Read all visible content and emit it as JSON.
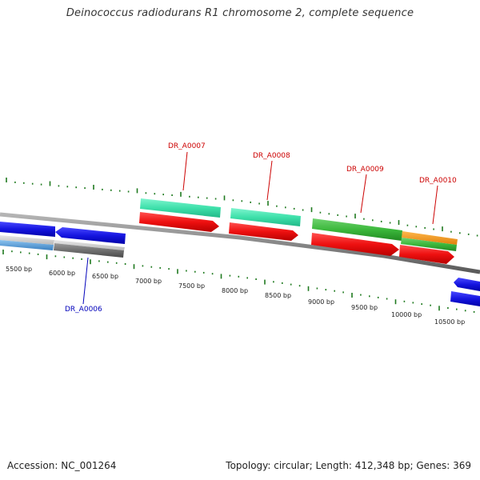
{
  "title": "Deinococcus radiodurans R1 chromosome 2, complete sequence",
  "footer": {
    "accession": "Accession: NC_001264",
    "topology": "Topology: circular; Length: 412,348 bp; Genes: 369"
  },
  "scale_labels": [
    "5500 bp",
    "6000 bp",
    "6500 bp",
    "7000 bp",
    "7500 bp",
    "8000 bp",
    "8500 bp",
    "9000 bp",
    "9500 bp",
    "10000 bp",
    "10500 bp"
  ],
  "gene_labels": {
    "DR_A0006": "DR_A0006",
    "DR_A0007": "DR_A0007",
    "DR_A0008": "DR_A0008",
    "DR_A0009": "DR_A0009",
    "DR_A0010": "DR_A0010"
  },
  "colors": {
    "tick": "#1f7a1f",
    "backbone": "#8a8a8a",
    "cds": "#e8141e",
    "gene_teal": "#44e6b0",
    "gene_green": "#3cb83c",
    "gene_orange": "#f29a1e",
    "gene_blue": "#1616e0",
    "gene_gray": "#6e6e6e",
    "gene_lightblue": "#5aa0dd",
    "label_forward": "#cc0000",
    "label_reverse": "#0000bb"
  }
}
